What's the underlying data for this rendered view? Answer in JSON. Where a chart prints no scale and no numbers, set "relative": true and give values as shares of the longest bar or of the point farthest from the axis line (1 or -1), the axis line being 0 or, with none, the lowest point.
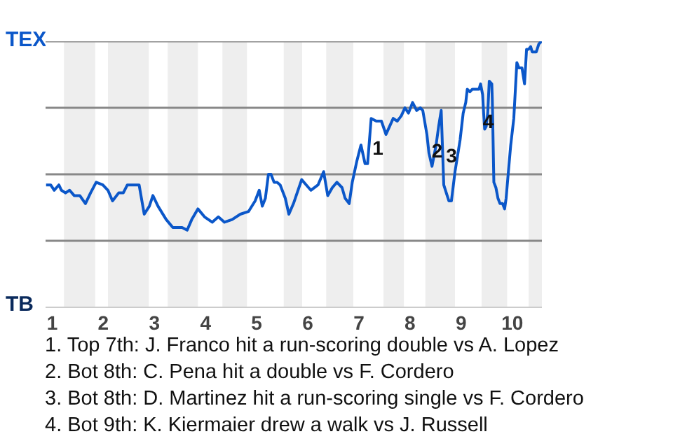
{
  "chart_data": {
    "type": "line",
    "relative": true,
    "tick_labels": "x",
    "x": [
      0.88,
      0.97,
      1.04,
      1.13,
      1.18,
      1.26,
      1.34,
      1.43,
      1.54,
      1.65,
      1.75,
      1.86,
      1.99,
      2.09,
      2.18,
      2.3,
      2.39,
      2.47,
      2.7,
      2.8,
      2.9,
      2.97,
      3.07,
      3.23,
      3.36,
      3.54,
      3.64,
      3.73,
      3.85,
      3.98,
      4.13,
      4.25,
      4.37,
      4.52,
      4.68,
      4.84,
      4.97,
      5.05,
      5.11,
      5.17,
      5.23,
      5.28,
      5.34,
      5.4,
      5.46,
      5.56,
      5.63,
      5.72,
      5.88,
      5.97,
      6.06,
      6.2,
      6.31,
      6.39,
      6.48,
      6.57,
      6.67,
      6.73,
      6.81,
      6.87,
      6.96,
      7.04,
      7.12,
      7.17,
      7.24,
      7.34,
      7.44,
      7.53,
      7.6,
      7.67,
      7.75,
      7.83,
      7.9,
      7.97,
      8.05,
      8.13,
      8.2,
      8.25,
      8.33,
      8.37,
      8.43,
      8.51,
      8.56,
      8.61,
      8.66,
      8.71,
      8.76,
      8.81,
      8.88,
      8.98,
      9.04,
      9.09,
      9.12,
      9.17,
      9.22,
      9.35,
      9.38,
      9.42,
      9.44,
      9.46,
      9.49,
      9.52,
      9.55,
      9.6,
      9.61,
      9.64,
      9.68,
      9.72,
      9.76,
      9.81,
      9.85,
      9.88,
      9.92,
      9.97,
      10.03,
      10.09,
      10.13,
      10.19,
      10.24,
      10.28,
      10.32,
      10.36,
      10.39,
      10.43,
      10.47,
      10.52,
      10.57
    ],
    "xlim": [
      0.87,
      10.58
    ],
    "xticks": [
      1,
      2,
      3,
      4,
      5,
      6,
      7,
      8,
      9,
      10
    ],
    "series": [
      {
        "color": "#0b57c9",
        "values": [
          0.46,
          0.46,
          0.44,
          0.46,
          0.44,
          0.43,
          0.44,
          0.42,
          0.42,
          0.39,
          0.43,
          0.47,
          0.46,
          0.44,
          0.4,
          0.43,
          0.43,
          0.46,
          0.46,
          0.35,
          0.38,
          0.42,
          0.38,
          0.33,
          0.3,
          0.3,
          0.29,
          0.33,
          0.37,
          0.34,
          0.32,
          0.34,
          0.32,
          0.33,
          0.35,
          0.36,
          0.4,
          0.44,
          0.38,
          0.41,
          0.5,
          0.5,
          0.47,
          0.47,
          0.46,
          0.41,
          0.35,
          0.39,
          0.48,
          0.46,
          0.44,
          0.46,
          0.51,
          0.42,
          0.45,
          0.47,
          0.45,
          0.41,
          0.39,
          0.47,
          0.55,
          0.61,
          0.54,
          0.54,
          0.71,
          0.7,
          0.7,
          0.65,
          0.68,
          0.71,
          0.7,
          0.72,
          0.75,
          0.73,
          0.77,
          0.74,
          0.75,
          0.74,
          0.65,
          0.58,
          0.53,
          0.61,
          0.68,
          0.74,
          0.46,
          0.43,
          0.4,
          0.4,
          0.51,
          0.63,
          0.73,
          0.77,
          0.82,
          0.81,
          0.82,
          0.82,
          0.84,
          0.8,
          0.73,
          0.67,
          0.68,
          0.73,
          0.85,
          0.84,
          0.78,
          0.47,
          0.45,
          0.41,
          0.39,
          0.39,
          0.37,
          0.41,
          0.5,
          0.61,
          0.71,
          0.92,
          0.9,
          0.9,
          0.84,
          0.97,
          0.97,
          0.98,
          0.96,
          0.96,
          0.96,
          0.99,
          1.0
        ]
      }
    ],
    "marker": "none",
    "line_style": "solid",
    "ref_lines": [
      {
        "axis": "y",
        "value": 0.25,
        "color": "#888888"
      },
      {
        "axis": "y",
        "value": 0.5,
        "color": "#888888"
      },
      {
        "axis": "y",
        "value": 0.75,
        "color": "#888888"
      },
      {
        "axis": "y",
        "value": 1,
        "color": "#888888"
      }
    ],
    "bands": [
      {
        "axis": "x",
        "from": 1.23,
        "to": 1.84,
        "color": "#eeeeee"
      },
      {
        "axis": "x",
        "from": 2.09,
        "to": 2.89,
        "color": "#eeeeee"
      },
      {
        "axis": "x",
        "from": 3.26,
        "to": 3.85,
        "color": "#eeeeee"
      },
      {
        "axis": "x",
        "from": 4.33,
        "to": 4.81,
        "color": "#eeeeee"
      },
      {
        "axis": "x",
        "from": 5.53,
        "to": 5.89,
        "color": "#eeeeee"
      },
      {
        "axis": "x",
        "from": 6.36,
        "to": 6.89,
        "color": "#eeeeee"
      },
      {
        "axis": "x",
        "from": 7.48,
        "to": 7.88,
        "color": "#eeeeee"
      },
      {
        "axis": "x",
        "from": 8.3,
        "to": 8.88,
        "color": "#eeeeee"
      },
      {
        "axis": "x",
        "from": 9.4,
        "to": 9.9,
        "color": "#eeeeee"
      },
      {
        "axis": "x",
        "from": 10.32,
        "to": 10.58,
        "color": "#eeeeee"
      }
    ],
    "annotations": [
      "TEX",
      "TB",
      {
        "text": "1",
        "x": 7.37,
        "y": 0.6
      },
      {
        "text": "2",
        "x": 8.53,
        "y": 0.59
      },
      {
        "text": "3",
        "x": 8.81,
        "y": 0.57
      },
      {
        "text": "4",
        "x": 9.53,
        "y": 0.7
      },
      "1. Top 7th: J. Franco hit a run-scoring double vs A. Lopez",
      "2. Bot 8th: C. Pena hit a double vs F. Cordero",
      "3. Bot 8th: D. Martinez hit a run-scoring single vs F. Cordero",
      "4. Bot 9th: K. Kiermaier drew a walk vs J. Russell"
    ]
  }
}
